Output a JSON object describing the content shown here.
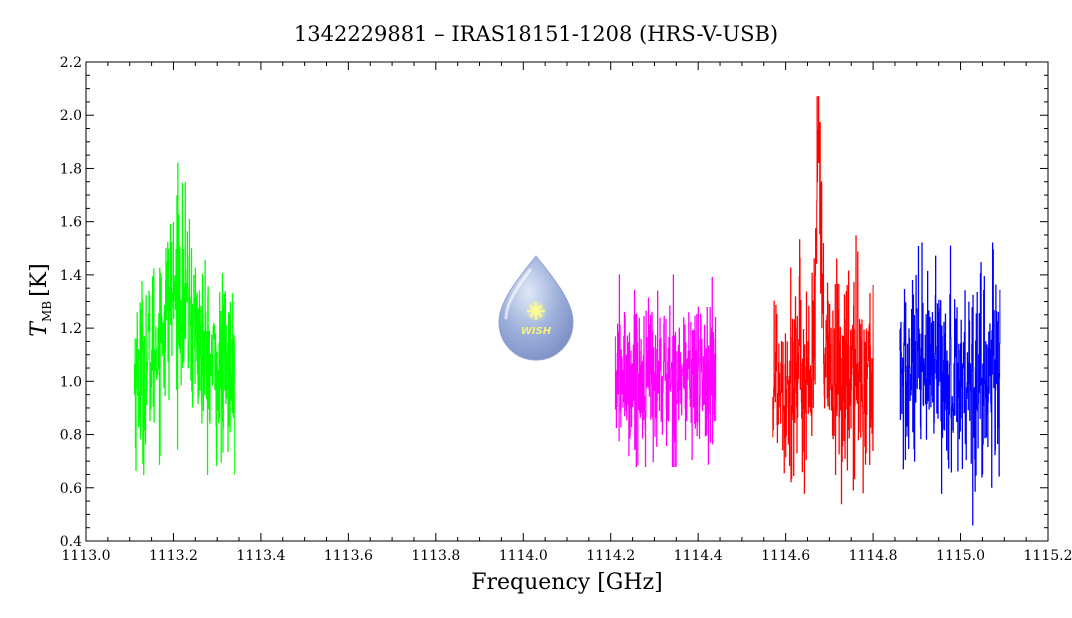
{
  "chart_data": {
    "type": "line",
    "title": "1342229881 – IRAS18151-1208 (HRS-V-USB)",
    "xlabel": "Frequency [GHz]",
    "ylabel_main": "T",
    "ylabel_sub": "MB",
    "ylabel_unit": "[K]",
    "xlim": [
      1113.0,
      1115.2
    ],
    "ylim": [
      0.4,
      2.2
    ],
    "x_ticks": [
      "1113.0",
      "1113.2",
      "1113.4",
      "1113.6",
      "1113.8",
      "1114.0",
      "1114.2",
      "1114.4",
      "1114.6",
      "1114.8",
      "1115.0",
      "1115.2"
    ],
    "y_ticks": [
      "0.4",
      "0.6",
      "0.8",
      "1.0",
      "1.2",
      "1.4",
      "1.6",
      "1.8",
      "2.0",
      "2.2"
    ],
    "grid": false,
    "logo_text": "WISH",
    "series": [
      {
        "color": "#00ff00",
        "x_range": [
          1113.11,
          1113.34
        ],
        "baseline": 1.02,
        "noise": 0.17,
        "y_extent": [
          0.65,
          1.82
        ],
        "peak": {
          "x": 1113.21,
          "y": 1.82,
          "width": 0.035,
          "height": 0.32
        }
      },
      {
        "color": "#ff00ff",
        "x_range": [
          1114.21,
          1114.44
        ],
        "baseline": 1.02,
        "noise": 0.15,
        "y_extent": [
          0.68,
          1.4
        ]
      },
      {
        "color": "#ff0000",
        "x_range": [
          1114.57,
          1114.8
        ],
        "baseline": 1.02,
        "noise": 0.2,
        "y_extent": [
          0.54,
          2.07
        ],
        "peak": {
          "x": 1114.675,
          "y": 2.07,
          "width": 0.006,
          "height": 0.75
        }
      },
      {
        "color": "#0000ff",
        "x_range": [
          1114.86,
          1115.09
        ],
        "baseline": 1.02,
        "noise": 0.19,
        "y_extent": [
          0.46,
          1.52
        ]
      }
    ]
  }
}
